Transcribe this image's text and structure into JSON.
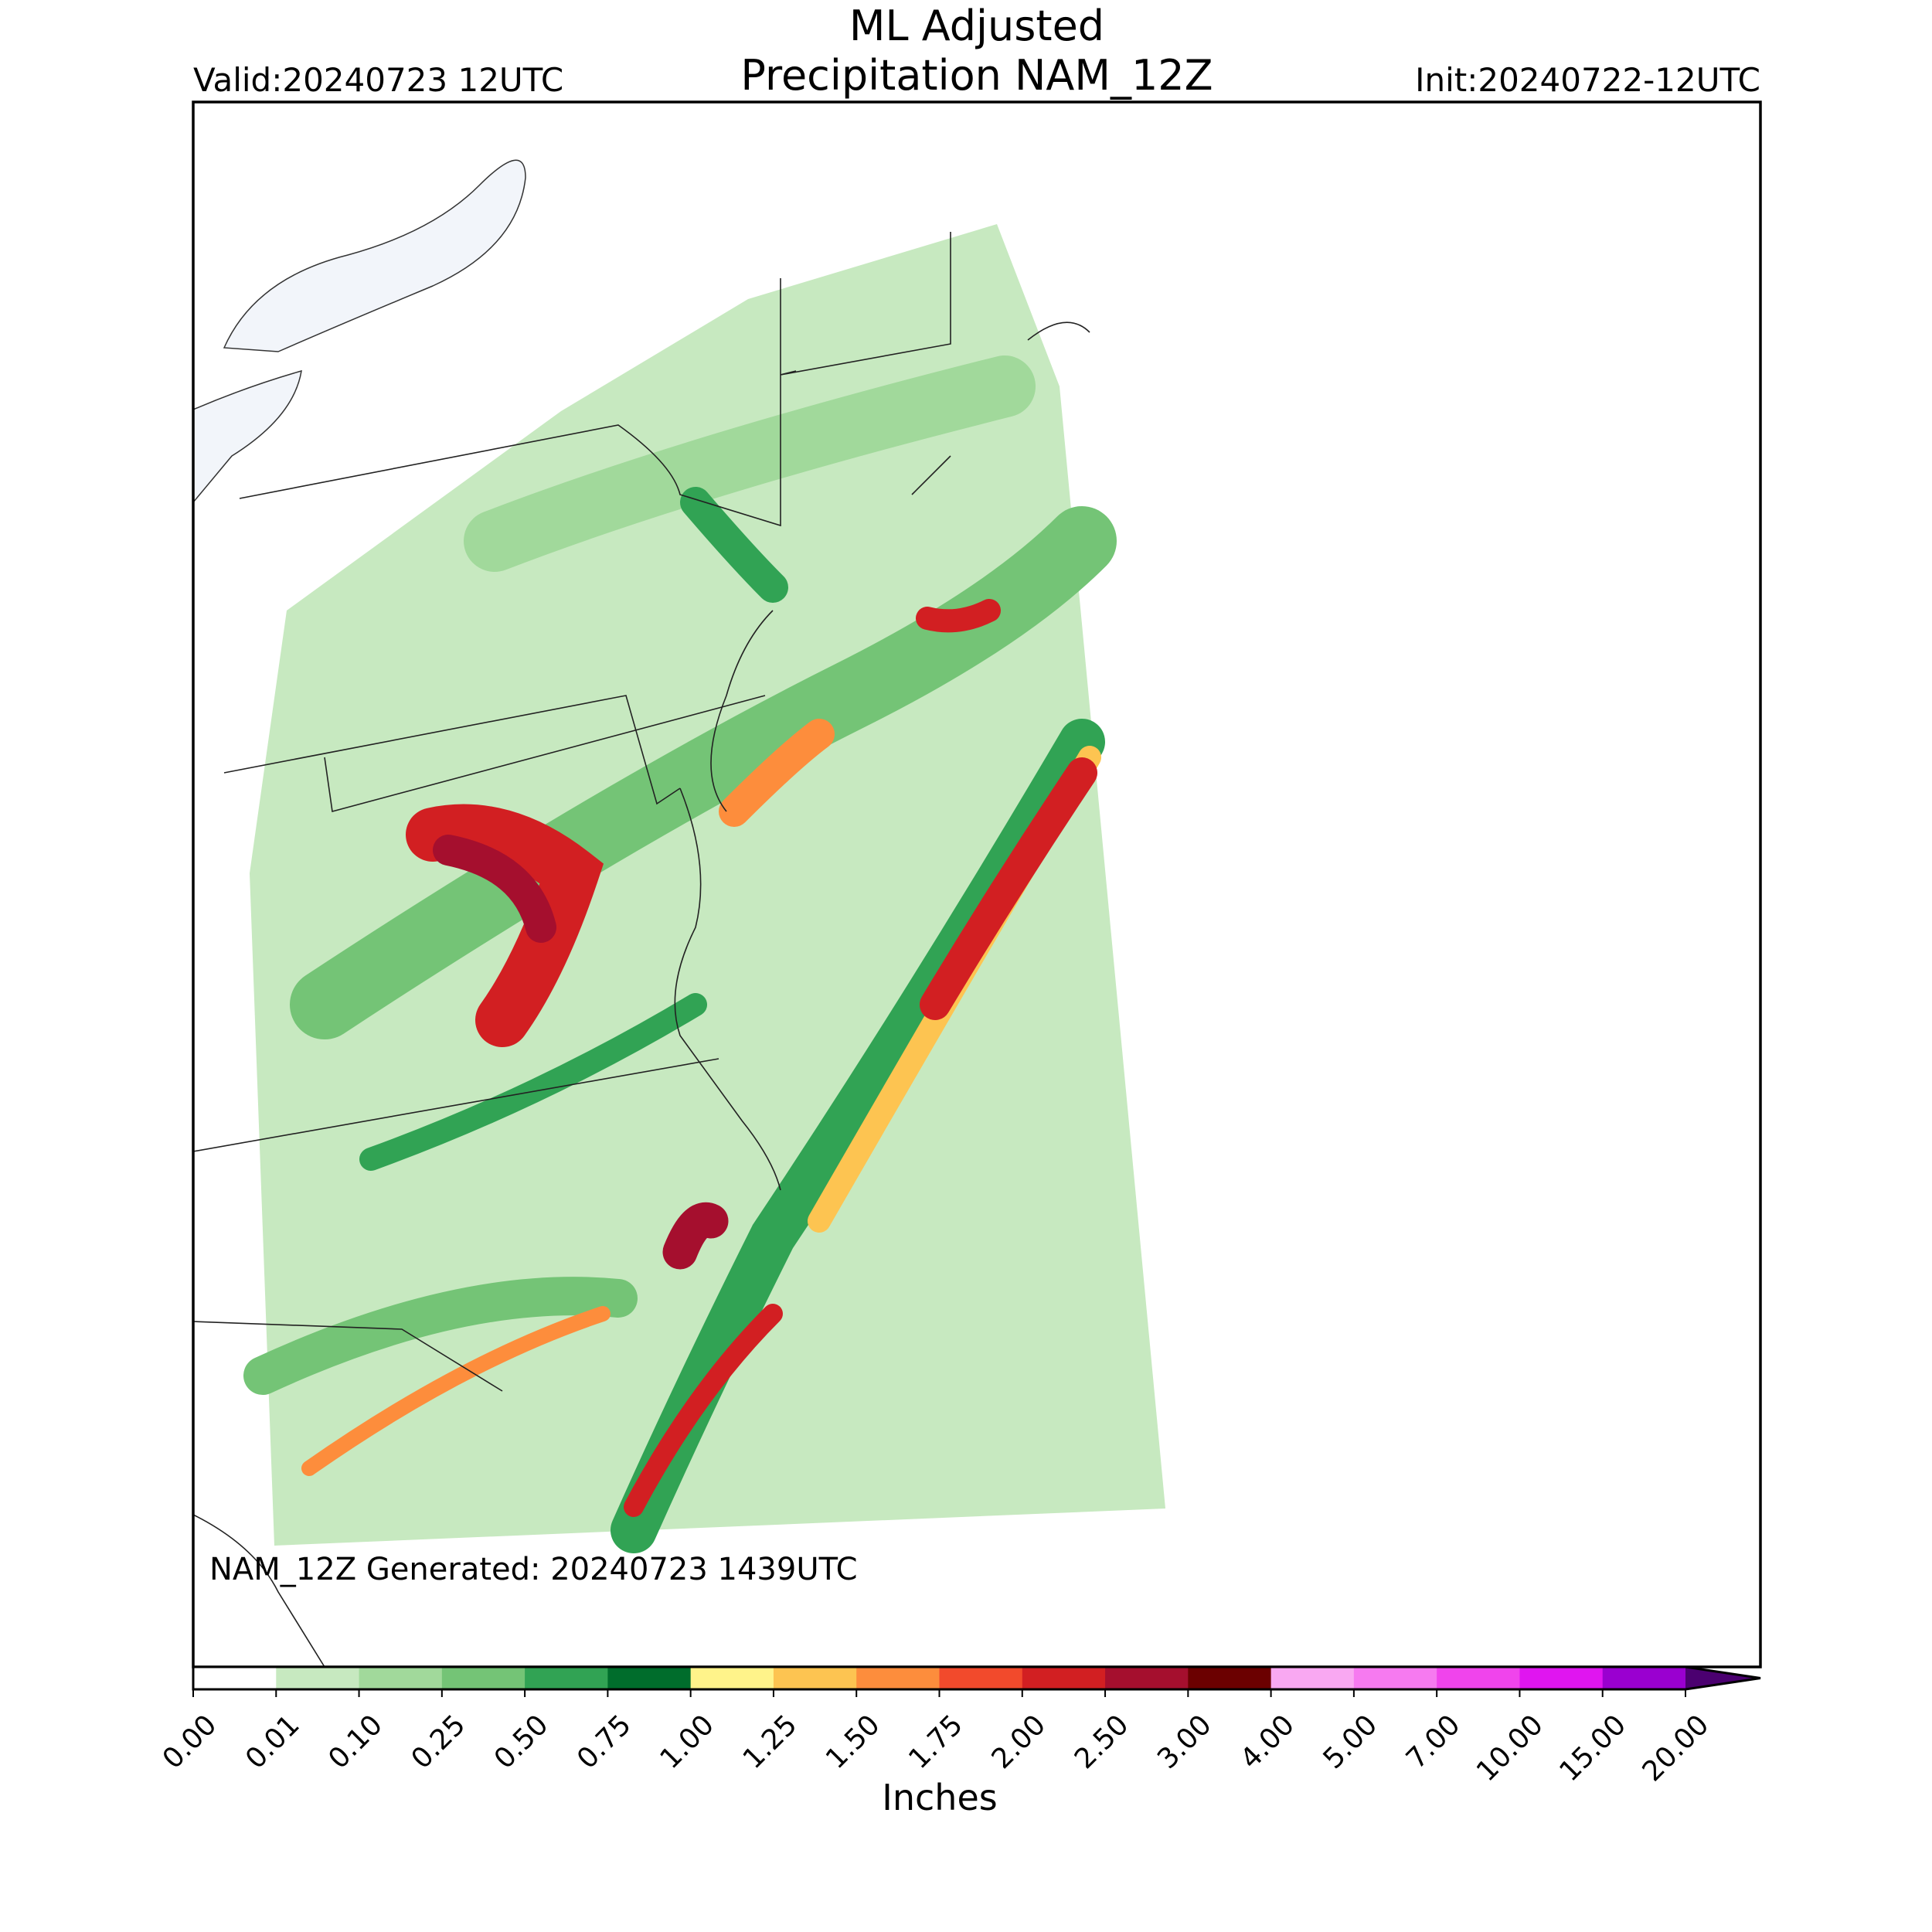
{
  "header": {
    "title_lines": [
      "ML Adjusted",
      "Precipitation NAM_12Z"
    ],
    "valid": "Valid:20240723 12UTC",
    "init": "Init:20240722-12UTC"
  },
  "map": {
    "note": "NAM_12Z Generated: 20240723 1439UTC"
  },
  "colorbar": {
    "label": "Inches",
    "levels": [
      {
        "value": 0,
        "label": "0.00"
      },
      {
        "value": 0.01,
        "label": "0.01"
      },
      {
        "value": 0.1,
        "label": "0.10"
      },
      {
        "value": 0.25,
        "label": "0.25"
      },
      {
        "value": 0.5,
        "label": "0.50"
      },
      {
        "value": 0.75,
        "label": "0.75"
      },
      {
        "value": 1,
        "label": "1.00"
      },
      {
        "value": 1.25,
        "label": "1.25"
      },
      {
        "value": 1.5,
        "label": "1.50"
      },
      {
        "value": 1.75,
        "label": "1.75"
      },
      {
        "value": 2,
        "label": "2.00"
      },
      {
        "value": 2.5,
        "label": "2.50"
      },
      {
        "value": 3,
        "label": "3.00"
      },
      {
        "value": 4,
        "label": "4.00"
      },
      {
        "value": 5,
        "label": "5.00"
      },
      {
        "value": 7,
        "label": "7.00"
      },
      {
        "value": 10,
        "label": "10.00"
      },
      {
        "value": 15,
        "label": "15.00"
      },
      {
        "value": 20,
        "label": "20.00"
      }
    ],
    "colors": [
      "#ffffff",
      "#c7e9c0",
      "#a1d99b",
      "#74c476",
      "#31a354",
      "#006d2c",
      "#fff38a",
      "#fdc451",
      "#fd8d3c",
      "#f24a2c",
      "#d21f22",
      "#a50f2e",
      "#6b0000",
      "#f9a8f2",
      "#f67af0",
      "#f044ec",
      "#e015f0",
      "#9a00d0"
    ],
    "extend_color": "#4b0070"
  }
}
